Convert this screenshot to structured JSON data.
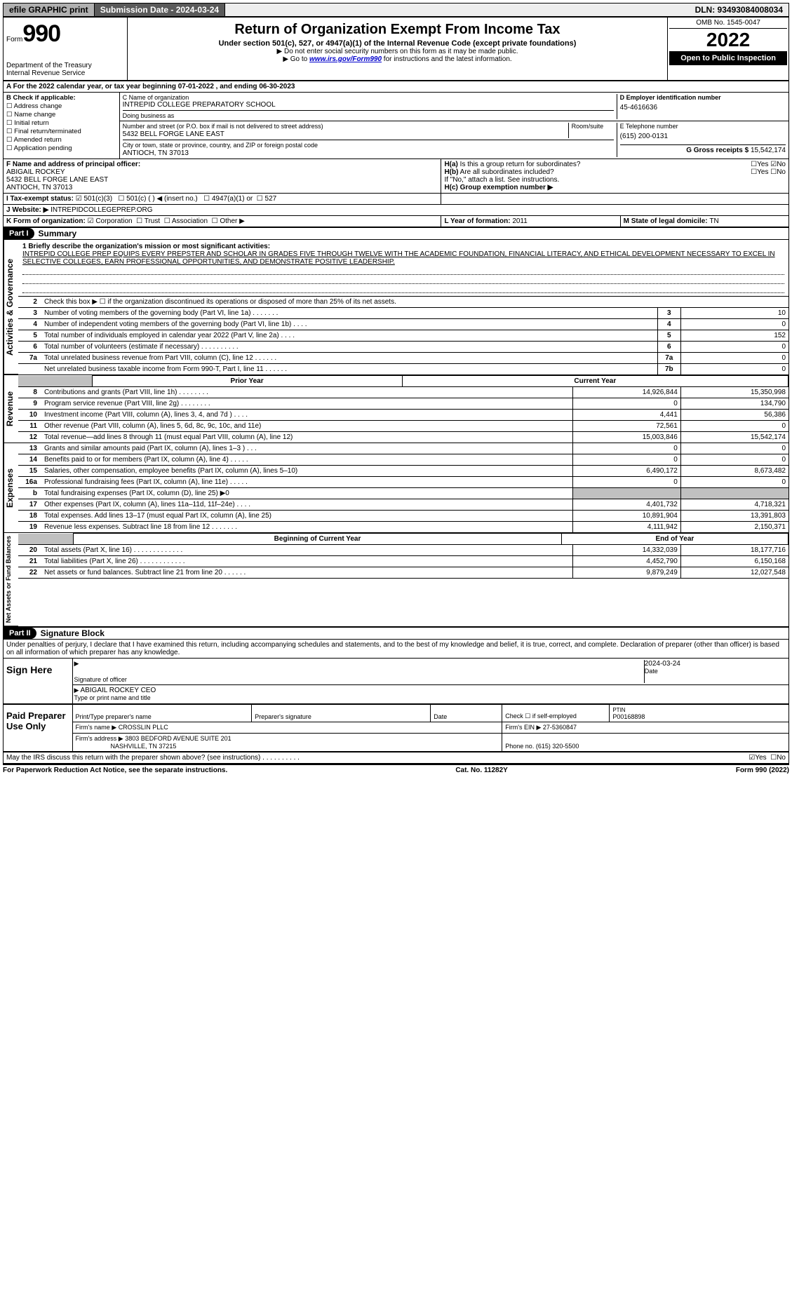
{
  "topbar": {
    "efile": "efile GRAPHIC print",
    "submission": "Submission Date - 2024-03-24",
    "dln": "DLN: 93493084008034"
  },
  "header": {
    "form_label": "Form",
    "form_number": "990",
    "dept": "Department of the Treasury",
    "irs": "Internal Revenue Service",
    "title": "Return of Organization Exempt From Income Tax",
    "subtitle": "Under section 501(c), 527, or 4947(a)(1) of the Internal Revenue Code (except private foundations)",
    "note1": "▶ Do not enter social security numbers on this form as it may be made public.",
    "note2_prefix": "▶ Go to ",
    "note2_link": "www.irs.gov/Form990",
    "note2_suffix": " for instructions and the latest information.",
    "omb": "OMB No. 1545-0047",
    "year": "2022",
    "inspect": "Open to Public Inspection"
  },
  "rowA": "A For the 2022 calendar year, or tax year beginning 07-01-2022    , and ending 06-30-2023",
  "boxB": {
    "title": "B Check if applicable:",
    "opts": [
      "Address change",
      "Name change",
      "Initial return",
      "Final return/terminated",
      "Amended return",
      "Application pending"
    ]
  },
  "boxC": {
    "label_name": "C Name of organization",
    "name": "INTREPID COLLEGE PREPARATORY SCHOOL",
    "dba_label": "Doing business as",
    "dba": "",
    "addr_label": "Number and street (or P.O. box if mail is not delivered to street address)",
    "room_label": "Room/suite",
    "addr": "5432 BELL FORGE LANE EAST",
    "city_label": "City or town, state or province, country, and ZIP or foreign postal code",
    "city": "ANTIOCH, TN  37013"
  },
  "boxD": {
    "label": "D Employer identification number",
    "val": "45-4616636"
  },
  "boxE": {
    "label": "E Telephone number",
    "val": "(615) 200-0131"
  },
  "boxG": {
    "label": "G Gross receipts $ ",
    "val": "15,542,174"
  },
  "boxF": {
    "label": "F Name and address of principal officer:",
    "name": "ABIGAIL ROCKEY",
    "addr1": "5432 BELL FORGE LANE EAST",
    "addr2": "ANTIOCH, TN  37013"
  },
  "boxH": {
    "a_label": "H(a) Is this a group return for subordinates?",
    "a_yes": "Yes",
    "a_no": "No",
    "b_label": "H(b) Are all subordinates included?",
    "b_note": "If \"No,\" attach a list. See instructions.",
    "c_label": "H(c) Group exemption number ▶"
  },
  "boxI": {
    "label": "I Tax-exempt status:",
    "o1": "501(c)(3)",
    "o2": "501(c) (   ) ◀ (insert no.)",
    "o3": "4947(a)(1) or",
    "o4": "527"
  },
  "boxJ": {
    "label": "J Website: ▶",
    "val": "INTREPIDCOLLEGEPREP.ORG"
  },
  "boxK": {
    "label": "K Form of organization:",
    "o1": "Corporation",
    "o2": "Trust",
    "o3": "Association",
    "o4": "Other ▶"
  },
  "boxL": {
    "label": "L Year of formation: ",
    "val": "2011"
  },
  "boxM": {
    "label": "M State of legal domicile: ",
    "val": "TN"
  },
  "part1": {
    "label": "Part I",
    "title": "Summary"
  },
  "mission": {
    "label": "1 Briefly describe the organization's mission or most significant activities:",
    "text": "INTREPID COLLEGE PREP EQUIPS EVERY PREPSTER AND SCHOLAR IN GRADES FIVE THROUGH TWELVE WITH THE ACADEMIC FOUNDATION, FINANCIAL LITERACY, AND ETHICAL DEVELOPMENT NECESSARY TO EXCEL IN SELECTIVE COLLEGES, EARN PROFESSIONAL OPPORTUNITIES, AND DEMONSTRATE POSITIVE LEADERSHIP."
  },
  "gov": {
    "l2": "Check this box ▶ ☐ if the organization discontinued its operations or disposed of more than 25% of its net assets.",
    "rows": [
      {
        "n": "3",
        "t": "Number of voting members of the governing body (Part VI, line 1a)  .    .    .    .    .    .    .",
        "i": "3",
        "v": "10"
      },
      {
        "n": "4",
        "t": "Number of independent voting members of the governing body (Part VI, line 1b)  .    .    .    .",
        "i": "4",
        "v": "0"
      },
      {
        "n": "5",
        "t": "Total number of individuals employed in calendar year 2022 (Part V, line 2a)  .    .    .    .",
        "i": "5",
        "v": "152"
      },
      {
        "n": "6",
        "t": "Total number of volunteers (estimate if necessary)   .    .    .    .    .    .    .    .    .    .",
        "i": "6",
        "v": "0"
      },
      {
        "n": "7a",
        "t": "Total unrelated business revenue from Part VIII, column (C), line 12   .    .    .    .    .    .",
        "i": "7a",
        "v": "0"
      },
      {
        "n": "",
        "t": "Net unrelated business taxable income from Form 990-T, Part I, line 11   .    .    .    .    .    .",
        "i": "7b",
        "v": "0"
      }
    ]
  },
  "yr_hdr": {
    "prior": "Prior Year",
    "current": "Current Year"
  },
  "rev": [
    {
      "n": "8",
      "t": "Contributions and grants (Part VIII, line 1h)   .    .    .    .    .    .    .    .",
      "p": "14,926,844",
      "c": "15,350,998"
    },
    {
      "n": "9",
      "t": "Program service revenue (Part VIII, line 2g)   .    .    .    .    .    .    .    .",
      "p": "0",
      "c": "134,790"
    },
    {
      "n": "10",
      "t": "Investment income (Part VIII, column (A), lines 3, 4, and 7d )   .    .    .    .",
      "p": "4,441",
      "c": "56,386"
    },
    {
      "n": "11",
      "t": "Other revenue (Part VIII, column (A), lines 5, 6d, 8c, 9c, 10c, and 11e)",
      "p": "72,561",
      "c": "0"
    },
    {
      "n": "12",
      "t": "Total revenue—add lines 8 through 11 (must equal Part VIII, column (A), line 12)",
      "p": "15,003,846",
      "c": "15,542,174"
    }
  ],
  "exp": [
    {
      "n": "13",
      "t": "Grants and similar amounts paid (Part IX, column (A), lines 1–3 )   .    .    .",
      "p": "0",
      "c": "0"
    },
    {
      "n": "14",
      "t": "Benefits paid to or for members (Part IX, column (A), line 4)   .    .    .    .    .",
      "p": "0",
      "c": "0"
    },
    {
      "n": "15",
      "t": "Salaries, other compensation, employee benefits (Part IX, column (A), lines 5–10)",
      "p": "6,490,172",
      "c": "8,673,482"
    },
    {
      "n": "16a",
      "t": "Professional fundraising fees (Part IX, column (A), line 11e)   .    .    .    .    .",
      "p": "0",
      "c": "0"
    },
    {
      "n": "b",
      "t": "Total fundraising expenses (Part IX, column (D), line 25) ▶0",
      "p": "",
      "c": "",
      "shade": true
    },
    {
      "n": "17",
      "t": "Other expenses (Part IX, column (A), lines 11a–11d, 11f–24e)   .    .    .    .",
      "p": "4,401,732",
      "c": "4,718,321"
    },
    {
      "n": "18",
      "t": "Total expenses. Add lines 13–17 (must equal Part IX, column (A), line 25)",
      "p": "10,891,904",
      "c": "13,391,803"
    },
    {
      "n": "19",
      "t": "Revenue less expenses. Subtract line 18 from line 12   .    .    .    .    .    .    .",
      "p": "4,111,942",
      "c": "2,150,371"
    }
  ],
  "net_hdr": {
    "begin": "Beginning of Current Year",
    "end": "End of Year"
  },
  "net": [
    {
      "n": "20",
      "t": "Total assets (Part X, line 16)   .    .    .    .    .    .    .    .    .    .    .    .    .",
      "p": "14,332,039",
      "c": "18,177,716"
    },
    {
      "n": "21",
      "t": "Total liabilities (Part X, line 26)   .    .    .    .    .    .    .    .    .    .    .    .",
      "p": "4,452,790",
      "c": "6,150,168"
    },
    {
      "n": "22",
      "t": "Net assets or fund balances. Subtract line 21 from line 20   .    .    .    .    .    .",
      "p": "9,879,249",
      "c": "12,027,548"
    }
  ],
  "part2": {
    "label": "Part II",
    "title": "Signature Block"
  },
  "penalties": "Under penalties of perjury, I declare that I have examined this return, including accompanying schedules and statements, and to the best of my knowledge and belief, it is true, correct, and complete. Declaration of preparer (other than officer) is based on all information of which preparer has any knowledge.",
  "sign": {
    "here": "Sign Here",
    "sig_of_officer": "Signature of officer",
    "date": "Date",
    "date_val": "2024-03-24",
    "name": "ABIGAIL ROCKEY CEO",
    "type_name": "Type or print name and title"
  },
  "paid": {
    "label": "Paid Preparer Use Only",
    "h1": "Print/Type preparer's name",
    "h2": "Preparer's signature",
    "h3": "Date",
    "h4": "Check ☐ if self-employed",
    "h5_label": "PTIN",
    "h5": "P00168898",
    "firm_label": "Firm's name    ▶",
    "firm": "CROSSLIN PLLC",
    "ein_label": "Firm's EIN ▶ ",
    "ein": "27-5360847",
    "addr_label": "Firm's address ▶",
    "addr1": "3803 BEDFORD AVENUE SUITE 201",
    "addr2": "NASHVILLE, TN  37215",
    "phone_label": "Phone no. ",
    "phone": "(615) 320-5500"
  },
  "discuss": "May the IRS discuss this return with the preparer shown above? (see instructions)   .    .    .    .    .    .    .    .    .    .",
  "footer": {
    "left": "For Paperwork Reduction Act Notice, see the separate instructions.",
    "mid": "Cat. No. 11282Y",
    "right": "Form 990 (2022)"
  },
  "vtabs": {
    "gov": "Activities & Governance",
    "rev": "Revenue",
    "exp": "Expenses",
    "net": "Net Assets or Fund Balances"
  }
}
